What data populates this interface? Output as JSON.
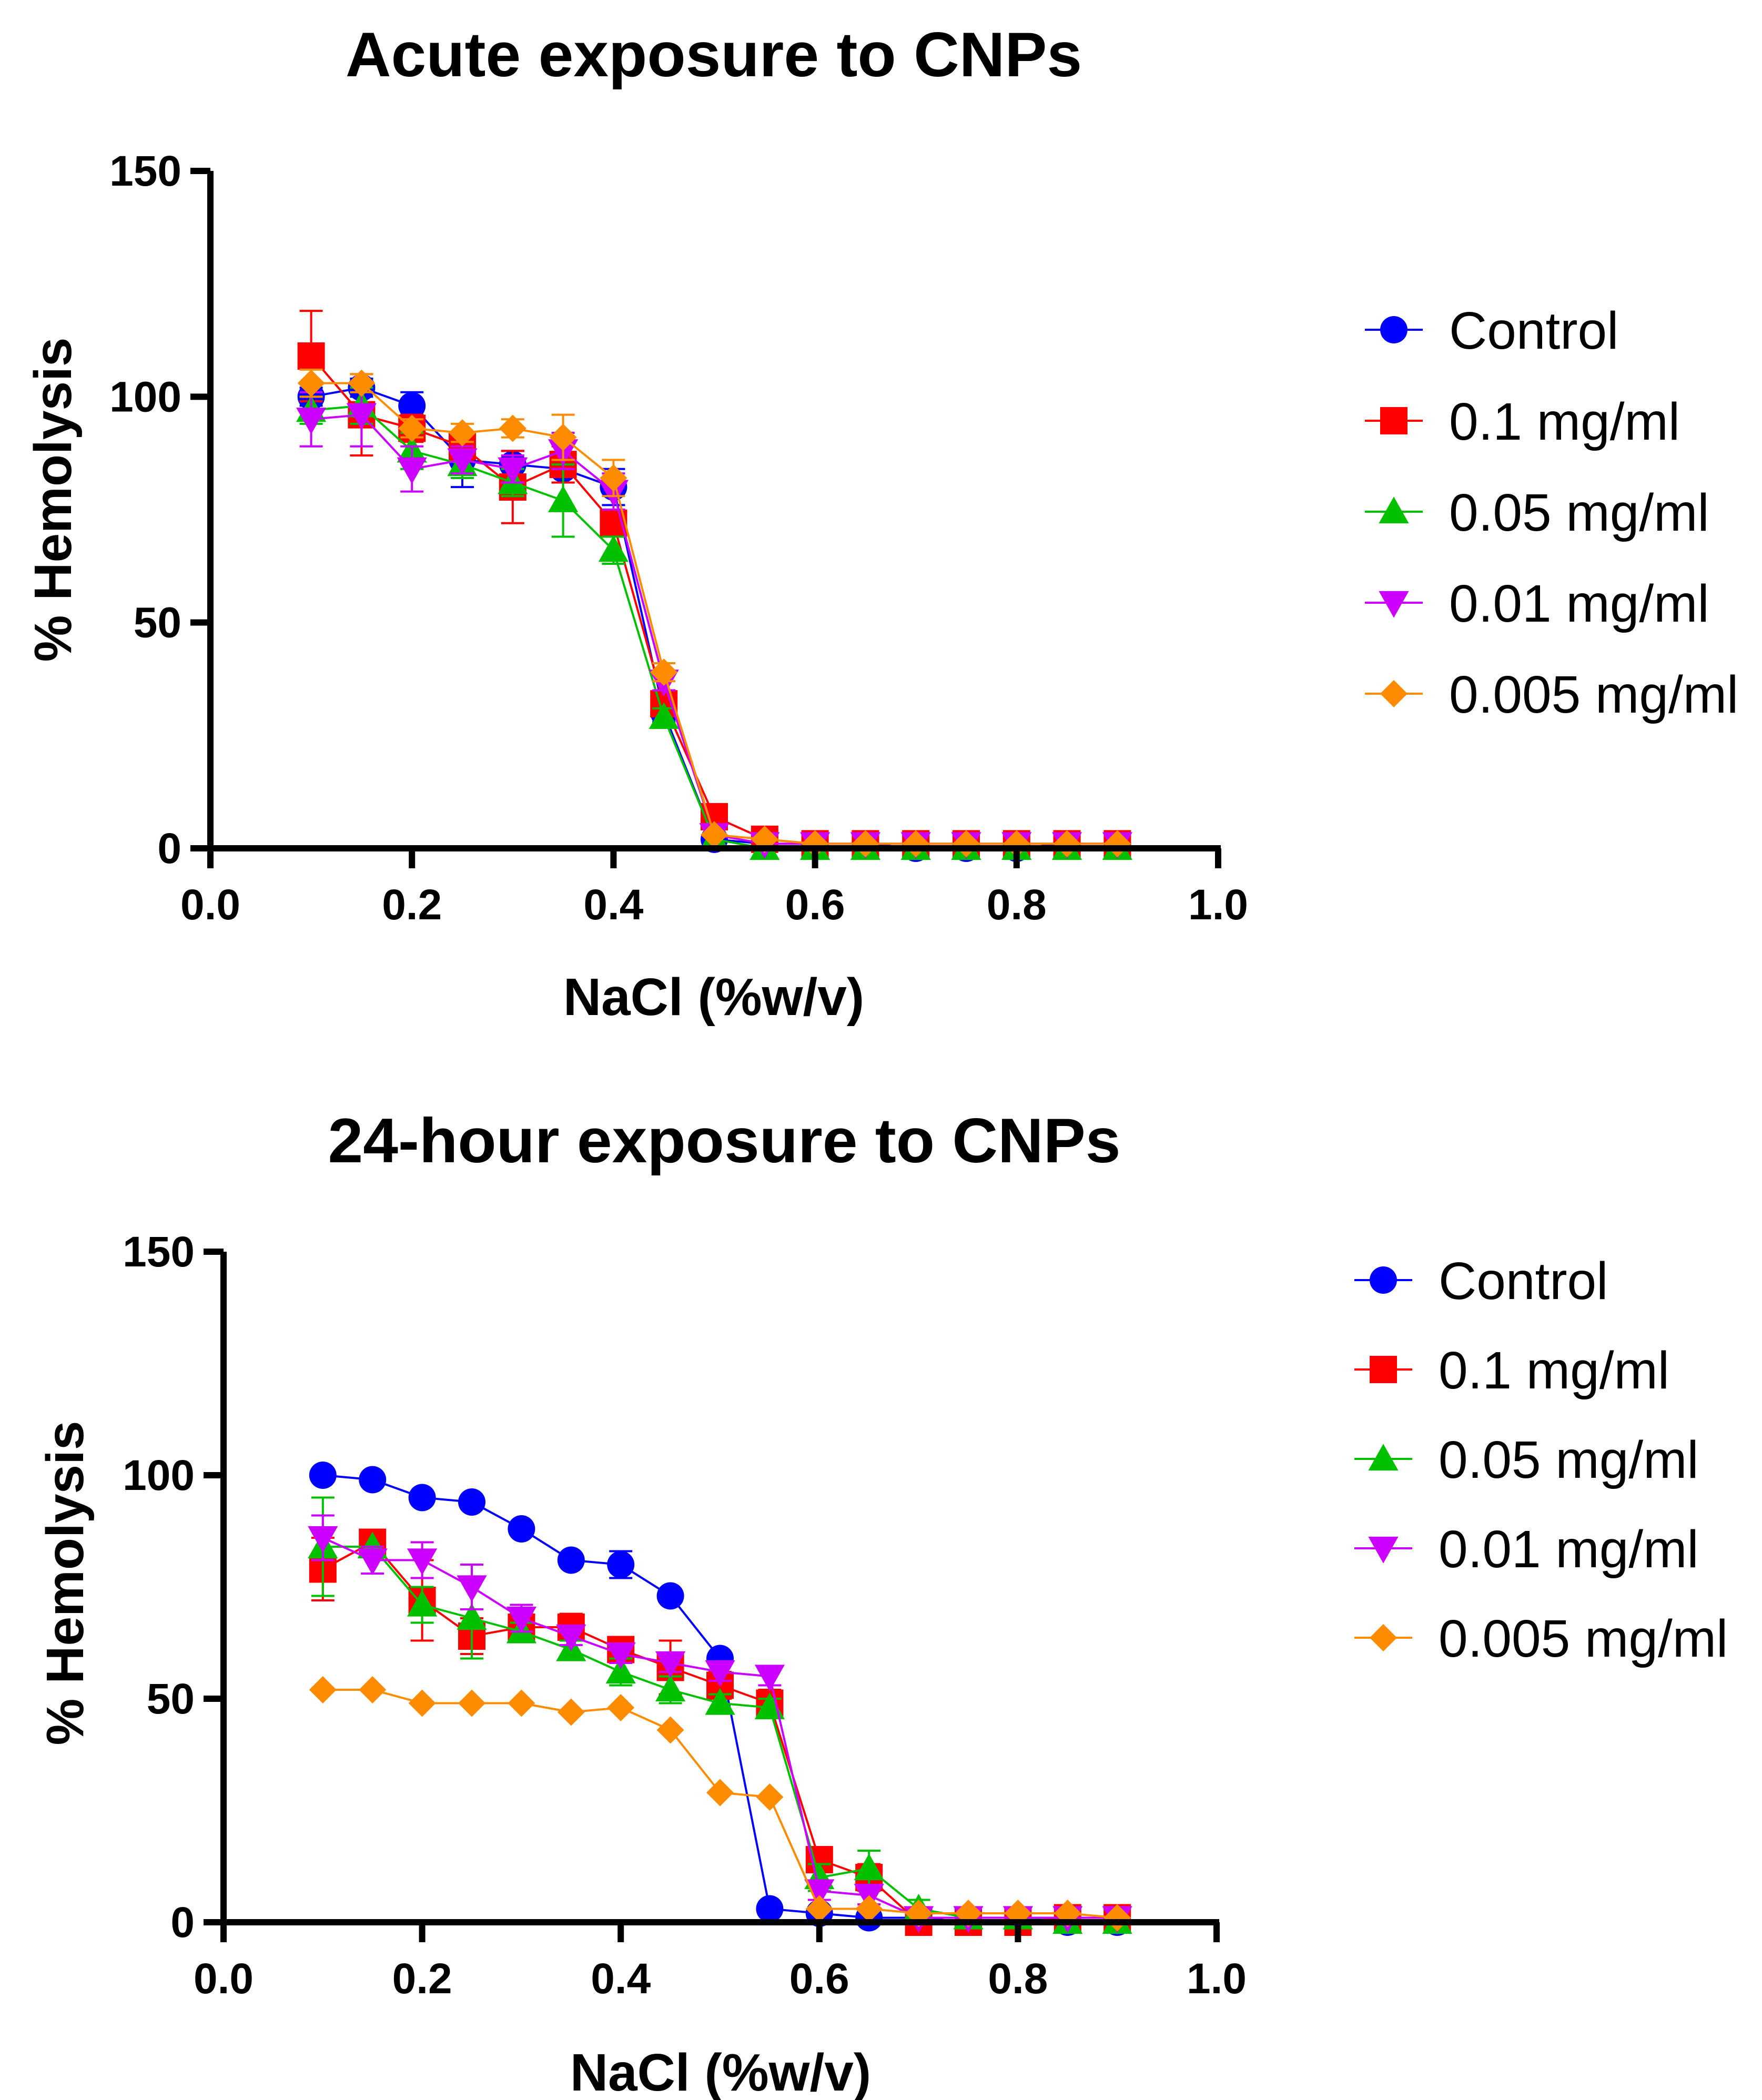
{
  "series_styles": [
    {
      "name": "Control",
      "color": "#0000ff",
      "marker": "circle"
    },
    {
      "name": "0.1 mg/ml",
      "color": "#ff0000",
      "marker": "square"
    },
    {
      "name": "0.05 mg/ml",
      "color": "#00c000",
      "marker": "triangle-up"
    },
    {
      "name": "0.01 mg/ml",
      "color": "#cc00ff",
      "marker": "triangle-down"
    },
    {
      "name": "0.005 mg/ml",
      "color": "#ff8c00",
      "marker": "diamond"
    }
  ],
  "chart_data": [
    {
      "type": "line",
      "title": "Acute exposure to CNPs",
      "xlabel": "NaCl (%w/v)",
      "ylabel": "% Hemolysis",
      "xlim": [
        0.0,
        1.0
      ],
      "ylim": [
        0,
        150
      ],
      "xticks": [
        "0.0",
        "0.2",
        "0.4",
        "0.6",
        "0.8",
        "1.0"
      ],
      "xtick_values": [
        0.0,
        0.2,
        0.4,
        0.6,
        0.8,
        1.0
      ],
      "yticks": [
        "0",
        "50",
        "100",
        "150"
      ],
      "ytick_values": [
        0,
        50,
        100,
        150
      ],
      "legend_position": "right",
      "x": [
        0.1,
        0.15,
        0.2,
        0.25,
        0.3,
        0.35,
        0.4,
        0.45,
        0.5,
        0.55,
        0.6,
        0.65,
        0.7,
        0.75,
        0.8,
        0.85,
        0.9
      ],
      "series": [
        {
          "name": "Control",
          "values": [
            100,
            102,
            98,
            86,
            85,
            84,
            80,
            30,
            2,
            1,
            1,
            1,
            0,
            0,
            0,
            1,
            1
          ],
          "errors": [
            2,
            2,
            3,
            6,
            3,
            3,
            4,
            2,
            0,
            0,
            0,
            0,
            0,
            0,
            0,
            0,
            0
          ]
        },
        {
          "name": "0.1 mg/ml",
          "values": [
            109,
            96,
            93,
            89,
            80,
            85,
            72,
            32,
            7,
            2,
            1,
            1,
            1,
            1,
            1,
            1,
            1
          ],
          "errors": [
            10,
            9,
            3,
            3,
            8,
            4,
            3,
            2,
            0,
            0,
            0,
            0,
            0,
            0,
            0,
            0,
            0
          ]
        },
        {
          "name": "0.05 mg/ml",
          "values": [
            97,
            98,
            88,
            85,
            81,
            77,
            66,
            29,
            2,
            0,
            0,
            0,
            0,
            0,
            0,
            0,
            0
          ],
          "errors": [
            3,
            4,
            4,
            3,
            3,
            8,
            3,
            2,
            0,
            0,
            0,
            0,
            0,
            0,
            0,
            0,
            0
          ]
        },
        {
          "name": "0.01 mg/ml",
          "values": [
            95,
            96,
            84,
            86,
            84,
            88,
            79,
            37,
            3,
            1,
            1,
            1,
            1,
            1,
            1,
            1,
            1
          ],
          "errors": [
            6,
            7,
            5,
            3,
            3,
            4,
            4,
            2,
            0,
            0,
            0,
            0,
            0,
            0,
            0,
            0,
            0
          ]
        },
        {
          "name": "0.005 mg/ml",
          "values": [
            103,
            103,
            93,
            92,
            93,
            91,
            82,
            39,
            3,
            2,
            1,
            1,
            1,
            1,
            1,
            1,
            1
          ],
          "errors": [
            3,
            2,
            2,
            2,
            2,
            5,
            4,
            2,
            0,
            0,
            0,
            0,
            0,
            0,
            0,
            0,
            0
          ]
        }
      ]
    },
    {
      "type": "line",
      "title": "24-hour exposure to CNPs",
      "xlabel": "NaCl (%w/v)",
      "ylabel": "% Hemolysis",
      "xlim": [
        0.0,
        1.0
      ],
      "ylim": [
        0,
        150
      ],
      "xticks": [
        "0.0",
        "0.2",
        "0.4",
        "0.6",
        "0.8",
        "1.0"
      ],
      "xtick_values": [
        0.0,
        0.2,
        0.4,
        0.6,
        0.8,
        1.0
      ],
      "yticks": [
        "0",
        "50",
        "100",
        "150"
      ],
      "ytick_values": [
        0,
        50,
        100,
        150
      ],
      "legend_position": "right",
      "x": [
        0.1,
        0.15,
        0.2,
        0.25,
        0.3,
        0.35,
        0.4,
        0.45,
        0.5,
        0.55,
        0.6,
        0.65,
        0.7,
        0.75,
        0.8,
        0.85,
        0.9
      ],
      "series": [
        {
          "name": "Control",
          "values": [
            100,
            99,
            95,
            94,
            88,
            81,
            80,
            73,
            59,
            3,
            2,
            1,
            1,
            0,
            0,
            0,
            0
          ],
          "errors": [
            0,
            0,
            0,
            0,
            0,
            0,
            3,
            0,
            0,
            0,
            0,
            0,
            0,
            0,
            0,
            0,
            0
          ]
        },
        {
          "name": "0.1 mg/ml",
          "values": [
            79,
            85,
            72,
            64,
            66,
            66,
            61,
            57,
            53,
            49,
            14,
            10,
            0,
            0,
            0,
            1,
            1
          ],
          "errors": [
            7,
            0,
            9,
            4,
            3,
            3,
            2,
            6,
            3,
            3,
            2,
            3,
            0,
            0,
            0,
            0,
            0
          ]
        },
        {
          "name": "0.05 mg/ml",
          "values": [
            84,
            84,
            71,
            68,
            65,
            61,
            56,
            52,
            49,
            48,
            10,
            12,
            3,
            1,
            1,
            0,
            0
          ],
          "errors": [
            11,
            0,
            4,
            9,
            2,
            2,
            3,
            3,
            2,
            2,
            3,
            4,
            2,
            0,
            0,
            0,
            0
          ]
        },
        {
          "name": "0.01 mg/ml",
          "values": [
            86,
            81,
            81,
            75,
            68,
            64,
            60,
            58,
            56,
            55,
            7,
            6,
            1,
            1,
            1,
            1,
            1
          ],
          "errors": [
            5,
            3,
            4,
            5,
            3,
            2,
            2,
            2,
            2,
            2,
            2,
            2,
            0,
            0,
            0,
            0,
            0
          ]
        },
        {
          "name": "0.005 mg/ml",
          "values": [
            52,
            52,
            49,
            49,
            49,
            47,
            48,
            43,
            29,
            28,
            3,
            3,
            2,
            2,
            2,
            2,
            1
          ],
          "errors": [
            0,
            0,
            0,
            0,
            0,
            0,
            0,
            0,
            0,
            0,
            0,
            0,
            0,
            0,
            0,
            0,
            0
          ]
        }
      ]
    }
  ]
}
